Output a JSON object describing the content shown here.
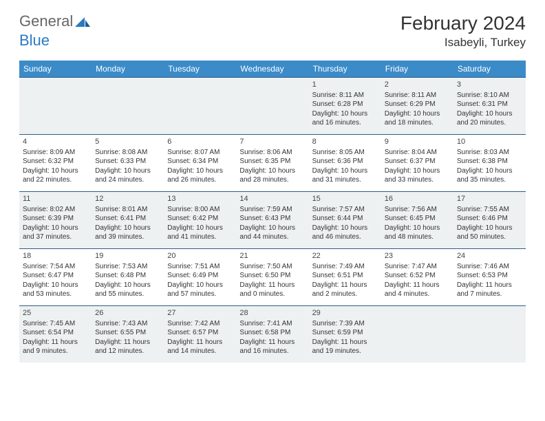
{
  "brand": {
    "part1": "General",
    "part2": "Blue"
  },
  "title": "February 2024",
  "location": "Isabeyli, Turkey",
  "colors": {
    "header_bg": "#3b8bc9",
    "header_text": "#ffffff",
    "row_border": "#2a5c8a",
    "shaded_bg": "#eef1f2",
    "text": "#333333"
  },
  "day_labels": [
    "Sunday",
    "Monday",
    "Tuesday",
    "Wednesday",
    "Thursday",
    "Friday",
    "Saturday"
  ],
  "weeks": [
    [
      {
        "day": "",
        "sunrise": "",
        "sunset": "",
        "daylight": ""
      },
      {
        "day": "",
        "sunrise": "",
        "sunset": "",
        "daylight": ""
      },
      {
        "day": "",
        "sunrise": "",
        "sunset": "",
        "daylight": ""
      },
      {
        "day": "",
        "sunrise": "",
        "sunset": "",
        "daylight": ""
      },
      {
        "day": "1",
        "sunrise": "Sunrise: 8:11 AM",
        "sunset": "Sunset: 6:28 PM",
        "daylight": "Daylight: 10 hours and 16 minutes."
      },
      {
        "day": "2",
        "sunrise": "Sunrise: 8:11 AM",
        "sunset": "Sunset: 6:29 PM",
        "daylight": "Daylight: 10 hours and 18 minutes."
      },
      {
        "day": "3",
        "sunrise": "Sunrise: 8:10 AM",
        "sunset": "Sunset: 6:31 PM",
        "daylight": "Daylight: 10 hours and 20 minutes."
      }
    ],
    [
      {
        "day": "4",
        "sunrise": "Sunrise: 8:09 AM",
        "sunset": "Sunset: 6:32 PM",
        "daylight": "Daylight: 10 hours and 22 minutes."
      },
      {
        "day": "5",
        "sunrise": "Sunrise: 8:08 AM",
        "sunset": "Sunset: 6:33 PM",
        "daylight": "Daylight: 10 hours and 24 minutes."
      },
      {
        "day": "6",
        "sunrise": "Sunrise: 8:07 AM",
        "sunset": "Sunset: 6:34 PM",
        "daylight": "Daylight: 10 hours and 26 minutes."
      },
      {
        "day": "7",
        "sunrise": "Sunrise: 8:06 AM",
        "sunset": "Sunset: 6:35 PM",
        "daylight": "Daylight: 10 hours and 28 minutes."
      },
      {
        "day": "8",
        "sunrise": "Sunrise: 8:05 AM",
        "sunset": "Sunset: 6:36 PM",
        "daylight": "Daylight: 10 hours and 31 minutes."
      },
      {
        "day": "9",
        "sunrise": "Sunrise: 8:04 AM",
        "sunset": "Sunset: 6:37 PM",
        "daylight": "Daylight: 10 hours and 33 minutes."
      },
      {
        "day": "10",
        "sunrise": "Sunrise: 8:03 AM",
        "sunset": "Sunset: 6:38 PM",
        "daylight": "Daylight: 10 hours and 35 minutes."
      }
    ],
    [
      {
        "day": "11",
        "sunrise": "Sunrise: 8:02 AM",
        "sunset": "Sunset: 6:39 PM",
        "daylight": "Daylight: 10 hours and 37 minutes."
      },
      {
        "day": "12",
        "sunrise": "Sunrise: 8:01 AM",
        "sunset": "Sunset: 6:41 PM",
        "daylight": "Daylight: 10 hours and 39 minutes."
      },
      {
        "day": "13",
        "sunrise": "Sunrise: 8:00 AM",
        "sunset": "Sunset: 6:42 PM",
        "daylight": "Daylight: 10 hours and 41 minutes."
      },
      {
        "day": "14",
        "sunrise": "Sunrise: 7:59 AM",
        "sunset": "Sunset: 6:43 PM",
        "daylight": "Daylight: 10 hours and 44 minutes."
      },
      {
        "day": "15",
        "sunrise": "Sunrise: 7:57 AM",
        "sunset": "Sunset: 6:44 PM",
        "daylight": "Daylight: 10 hours and 46 minutes."
      },
      {
        "day": "16",
        "sunrise": "Sunrise: 7:56 AM",
        "sunset": "Sunset: 6:45 PM",
        "daylight": "Daylight: 10 hours and 48 minutes."
      },
      {
        "day": "17",
        "sunrise": "Sunrise: 7:55 AM",
        "sunset": "Sunset: 6:46 PM",
        "daylight": "Daylight: 10 hours and 50 minutes."
      }
    ],
    [
      {
        "day": "18",
        "sunrise": "Sunrise: 7:54 AM",
        "sunset": "Sunset: 6:47 PM",
        "daylight": "Daylight: 10 hours and 53 minutes."
      },
      {
        "day": "19",
        "sunrise": "Sunrise: 7:53 AM",
        "sunset": "Sunset: 6:48 PM",
        "daylight": "Daylight: 10 hours and 55 minutes."
      },
      {
        "day": "20",
        "sunrise": "Sunrise: 7:51 AM",
        "sunset": "Sunset: 6:49 PM",
        "daylight": "Daylight: 10 hours and 57 minutes."
      },
      {
        "day": "21",
        "sunrise": "Sunrise: 7:50 AM",
        "sunset": "Sunset: 6:50 PM",
        "daylight": "Daylight: 11 hours and 0 minutes."
      },
      {
        "day": "22",
        "sunrise": "Sunrise: 7:49 AM",
        "sunset": "Sunset: 6:51 PM",
        "daylight": "Daylight: 11 hours and 2 minutes."
      },
      {
        "day": "23",
        "sunrise": "Sunrise: 7:47 AM",
        "sunset": "Sunset: 6:52 PM",
        "daylight": "Daylight: 11 hours and 4 minutes."
      },
      {
        "day": "24",
        "sunrise": "Sunrise: 7:46 AM",
        "sunset": "Sunset: 6:53 PM",
        "daylight": "Daylight: 11 hours and 7 minutes."
      }
    ],
    [
      {
        "day": "25",
        "sunrise": "Sunrise: 7:45 AM",
        "sunset": "Sunset: 6:54 PM",
        "daylight": "Daylight: 11 hours and 9 minutes."
      },
      {
        "day": "26",
        "sunrise": "Sunrise: 7:43 AM",
        "sunset": "Sunset: 6:55 PM",
        "daylight": "Daylight: 11 hours and 12 minutes."
      },
      {
        "day": "27",
        "sunrise": "Sunrise: 7:42 AM",
        "sunset": "Sunset: 6:57 PM",
        "daylight": "Daylight: 11 hours and 14 minutes."
      },
      {
        "day": "28",
        "sunrise": "Sunrise: 7:41 AM",
        "sunset": "Sunset: 6:58 PM",
        "daylight": "Daylight: 11 hours and 16 minutes."
      },
      {
        "day": "29",
        "sunrise": "Sunrise: 7:39 AM",
        "sunset": "Sunset: 6:59 PM",
        "daylight": "Daylight: 11 hours and 19 minutes."
      },
      {
        "day": "",
        "sunrise": "",
        "sunset": "",
        "daylight": ""
      },
      {
        "day": "",
        "sunrise": "",
        "sunset": "",
        "daylight": ""
      }
    ]
  ]
}
